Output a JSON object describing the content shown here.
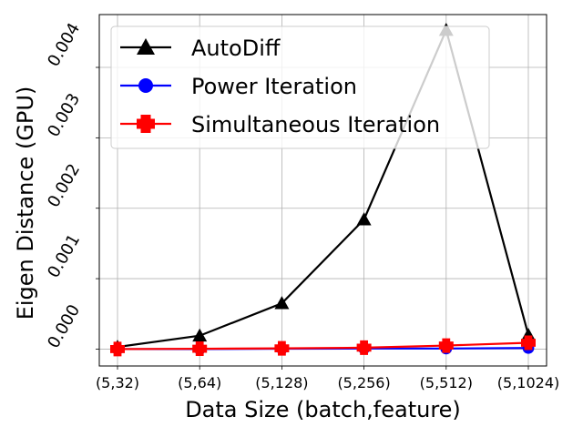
{
  "chart_data": {
    "type": "line",
    "categories": [
      "(5,32)",
      "(5,64)",
      "(5,128)",
      "(5,256)",
      "(5,512)",
      "(5,1024)"
    ],
    "xlabel": "Data Size (batch,feature)",
    "ylabel": "Eigen Distance (GPU)",
    "ylim": [
      -0.00024,
      0.00475
    ],
    "yticks": [
      0.0,
      0.001,
      0.002,
      0.003,
      0.004
    ],
    "ytick_labels": [
      "0.000",
      "0.001",
      "0.002",
      "0.003",
      "0.004"
    ],
    "grid": true,
    "legend_position": "top-left",
    "series": [
      {
        "name": "AutoDiff",
        "color": "#000000",
        "marker": "triangle",
        "values": [
          3e-05,
          0.00019,
          0.00065,
          0.00184,
          0.00453,
          0.0002
        ]
      },
      {
        "name": "Power Iteration",
        "color": "#0000ff",
        "marker": "circle",
        "values": [
          0.0,
          0.0,
          5e-06,
          8e-06,
          8e-06,
          1.5e-05
        ]
      },
      {
        "name": "Simultaneous Iteration",
        "color": "#ff0000",
        "marker": "plus",
        "values": [
          0.0,
          5e-06,
          1e-05,
          2e-05,
          5e-05,
          9e-05
        ]
      }
    ]
  }
}
